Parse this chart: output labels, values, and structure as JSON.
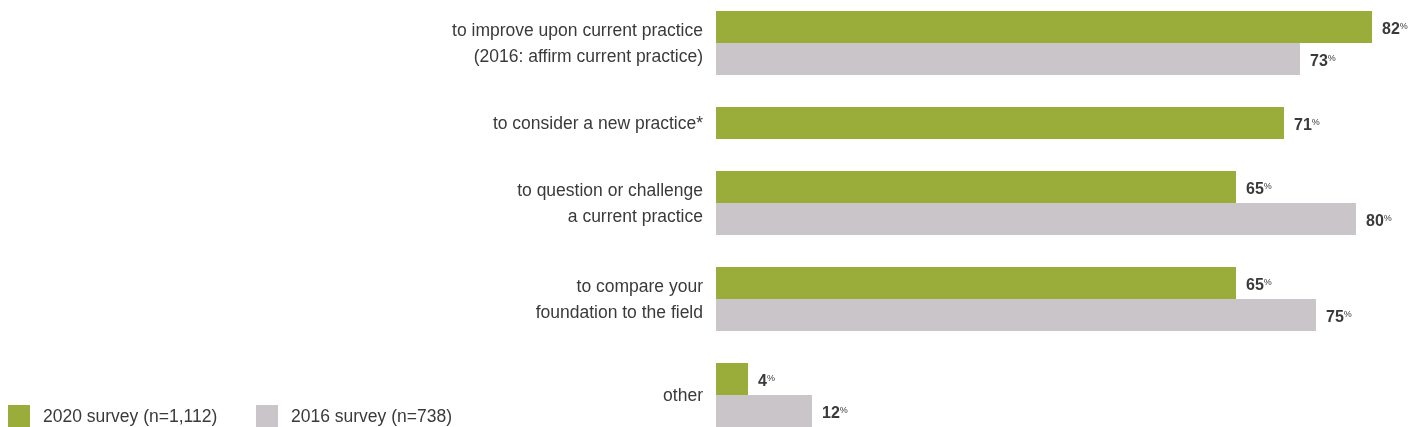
{
  "chart_data": {
    "type": "bar",
    "orientation": "horizontal",
    "categories": [
      "to improve upon current practice\n(2016: affirm current practice)",
      "to consider a new practice*",
      "to question or challenge\na current practice",
      "to compare your\nfoundation to the field",
      "other"
    ],
    "series": [
      {
        "name": "2020 survey (n=1,112)",
        "color": "#9aad3b",
        "values": [
          82,
          71,
          65,
          65,
          4
        ],
        "value_labels": [
          "82$^{%}$",
          "71$^{%}$",
          "65$^{%}$",
          "65$^{%}$",
          "4$^{%}$"
        ]
      },
      {
        "name": "2016 survey (n=738)",
        "color": "#c9c5c9",
        "values": [
          73,
          null,
          80,
          75,
          12
        ],
        "value_labels": [
          "73$^{%}$",
          null,
          "80$^{%}$",
          "75$^{%}$",
          "12$^{%}$"
        ]
      }
    ],
    "legend": "bottom left"
  }
}
